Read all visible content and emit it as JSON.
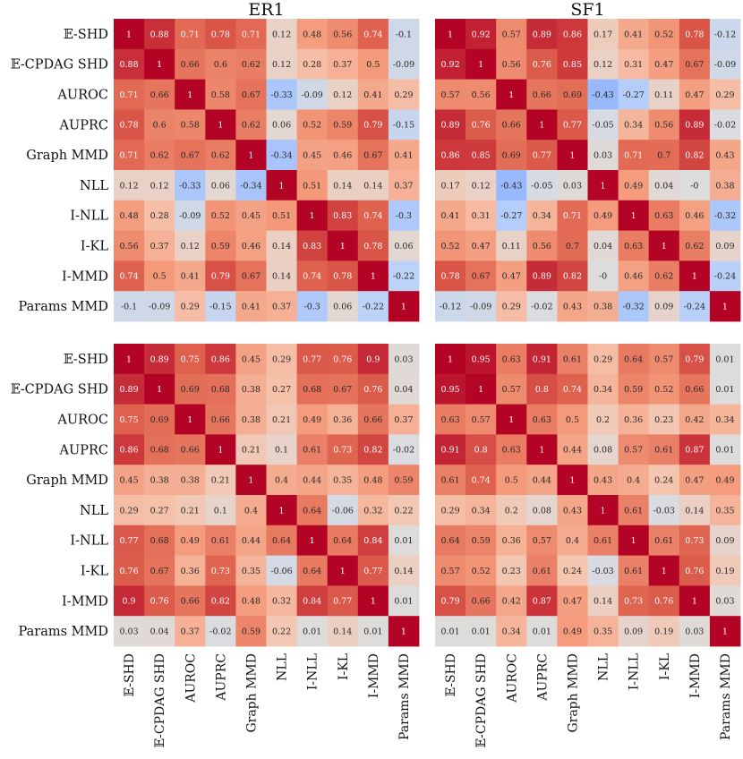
{
  "chart_data": {
    "type": "heatmap",
    "colormap": "coolwarm",
    "vmin": -1,
    "vmax": 1,
    "labels": [
      "𝔼-SHD",
      "𝔼-CPDAG SHD",
      "AUROC",
      "AUPRC",
      "Graph MMD",
      "NLL",
      "I-NLL",
      "I-KL",
      "I-MMD",
      "Params MMD"
    ],
    "columns": [
      "ER1",
      "SF1"
    ],
    "panels": [
      {
        "column": "ER1",
        "row": "top",
        "matrix": [
          [
            1,
            0.88,
            0.71,
            0.78,
            0.71,
            0.12,
            0.48,
            0.56,
            0.74,
            -0.1
          ],
          [
            0.88,
            1,
            0.66,
            0.6,
            0.62,
            0.12,
            0.28,
            0.37,
            0.5,
            -0.09
          ],
          [
            0.71,
            0.66,
            1,
            0.58,
            0.67,
            -0.33,
            -0.09,
            0.12,
            0.41,
            0.29
          ],
          [
            0.78,
            0.6,
            0.58,
            1,
            0.62,
            0.06,
            0.52,
            0.59,
            0.79,
            -0.15
          ],
          [
            0.71,
            0.62,
            0.67,
            0.62,
            1,
            -0.34,
            0.45,
            0.46,
            0.67,
            0.41
          ],
          [
            0.12,
            0.12,
            -0.33,
            0.06,
            -0.34,
            1,
            0.51,
            0.14,
            0.14,
            0.37
          ],
          [
            0.48,
            0.28,
            -0.09,
            0.52,
            0.45,
            0.51,
            1,
            0.83,
            0.74,
            -0.3
          ],
          [
            0.56,
            0.37,
            0.12,
            0.59,
            0.46,
            0.14,
            0.83,
            1,
            0.78,
            0.06
          ],
          [
            0.74,
            0.5,
            0.41,
            0.79,
            0.67,
            0.14,
            0.74,
            0.78,
            1,
            -0.22
          ],
          [
            -0.1,
            -0.09,
            0.29,
            -0.15,
            0.41,
            0.37,
            -0.3,
            0.06,
            -0.22,
            1
          ]
        ]
      },
      {
        "column": "SF1",
        "row": "top",
        "matrix": [
          [
            1,
            0.92,
            0.57,
            0.89,
            0.86,
            0.17,
            0.41,
            0.52,
            0.78,
            -0.12
          ],
          [
            0.92,
            1,
            0.56,
            0.76,
            0.85,
            0.12,
            0.31,
            0.47,
            0.67,
            -0.09
          ],
          [
            0.57,
            0.56,
            1,
            0.66,
            0.69,
            -0.43,
            -0.27,
            0.11,
            0.47,
            0.29
          ],
          [
            0.89,
            0.76,
            0.66,
            1,
            0.77,
            -0.05,
            0.34,
            0.56,
            0.89,
            -0.02
          ],
          [
            0.86,
            0.85,
            0.69,
            0.77,
            1,
            0.03,
            0.71,
            0.7,
            0.82,
            0.43
          ],
          [
            0.17,
            0.12,
            -0.43,
            -0.05,
            0.03,
            1,
            0.49,
            0.04,
            0,
            0.38
          ],
          [
            0.41,
            0.31,
            -0.27,
            0.34,
            0.71,
            0.49,
            1,
            0.63,
            0.46,
            -0.32
          ],
          [
            0.52,
            0.47,
            0.11,
            0.56,
            0.7,
            0.04,
            0.63,
            1,
            0.62,
            0.09
          ],
          [
            0.78,
            0.67,
            0.47,
            0.89,
            0.82,
            0,
            0.46,
            0.62,
            1,
            -0.24
          ],
          [
            -0.12,
            -0.09,
            0.29,
            -0.02,
            0.43,
            0.38,
            -0.32,
            0.09,
            -0.24,
            1
          ]
        ]
      },
      {
        "column": "ER1",
        "row": "bottom",
        "matrix": [
          [
            1,
            0.89,
            0.75,
            0.86,
            0.45,
            0.29,
            0.77,
            0.76,
            0.9,
            0.03
          ],
          [
            0.89,
            1,
            0.69,
            0.68,
            0.38,
            0.27,
            0.68,
            0.67,
            0.76,
            0.04
          ],
          [
            0.75,
            0.69,
            1,
            0.66,
            0.38,
            0.21,
            0.49,
            0.36,
            0.66,
            0.37
          ],
          [
            0.86,
            0.68,
            0.66,
            1,
            0.21,
            0.1,
            0.61,
            0.73,
            0.82,
            -0.02
          ],
          [
            0.45,
            0.38,
            0.38,
            0.21,
            1,
            0.4,
            0.44,
            0.35,
            0.48,
            0.59
          ],
          [
            0.29,
            0.27,
            0.21,
            0.1,
            0.4,
            1,
            0.64,
            -0.06,
            0.32,
            0.22
          ],
          [
            0.77,
            0.68,
            0.49,
            0.61,
            0.44,
            0.64,
            1,
            0.64,
            0.84,
            0.01
          ],
          [
            0.76,
            0.67,
            0.36,
            0.73,
            0.35,
            -0.06,
            0.64,
            1,
            0.77,
            0.14
          ],
          [
            0.9,
            0.76,
            0.66,
            0.82,
            0.48,
            0.32,
            0.84,
            0.77,
            1,
            0.01
          ],
          [
            0.03,
            0.04,
            0.37,
            -0.02,
            0.59,
            0.22,
            0.01,
            0.14,
            0.01,
            1
          ]
        ]
      },
      {
        "column": "SF1",
        "row": "bottom",
        "matrix": [
          [
            1,
            0.95,
            0.63,
            0.91,
            0.61,
            0.29,
            0.64,
            0.57,
            0.79,
            0.01
          ],
          [
            0.95,
            1,
            0.57,
            0.8,
            0.74,
            0.34,
            0.59,
            0.52,
            0.66,
            0.01
          ],
          [
            0.63,
            0.57,
            1,
            0.63,
            0.5,
            0.2,
            0.36,
            0.23,
            0.42,
            0.34
          ],
          [
            0.91,
            0.8,
            0.63,
            1,
            0.44,
            0.08,
            0.57,
            0.61,
            0.87,
            0.01
          ],
          [
            0.61,
            0.74,
            0.5,
            0.44,
            1,
            0.43,
            0.4,
            0.24,
            0.47,
            0.49
          ],
          [
            0.29,
            0.34,
            0.2,
            0.08,
            0.43,
            1,
            0.61,
            -0.03,
            0.14,
            0.35
          ],
          [
            0.64,
            0.59,
            0.36,
            0.57,
            0.4,
            0.61,
            1,
            0.61,
            0.73,
            0.09
          ],
          [
            0.57,
            0.52,
            0.23,
            0.61,
            0.24,
            -0.03,
            0.61,
            1,
            0.76,
            0.19
          ],
          [
            0.79,
            0.66,
            0.42,
            0.87,
            0.47,
            0.14,
            0.73,
            0.76,
            1,
            0.03
          ],
          [
            0.01,
            0.01,
            0.34,
            0.01,
            0.49,
            0.35,
            0.09,
            0.19,
            0.03,
            1
          ]
        ]
      }
    ]
  }
}
